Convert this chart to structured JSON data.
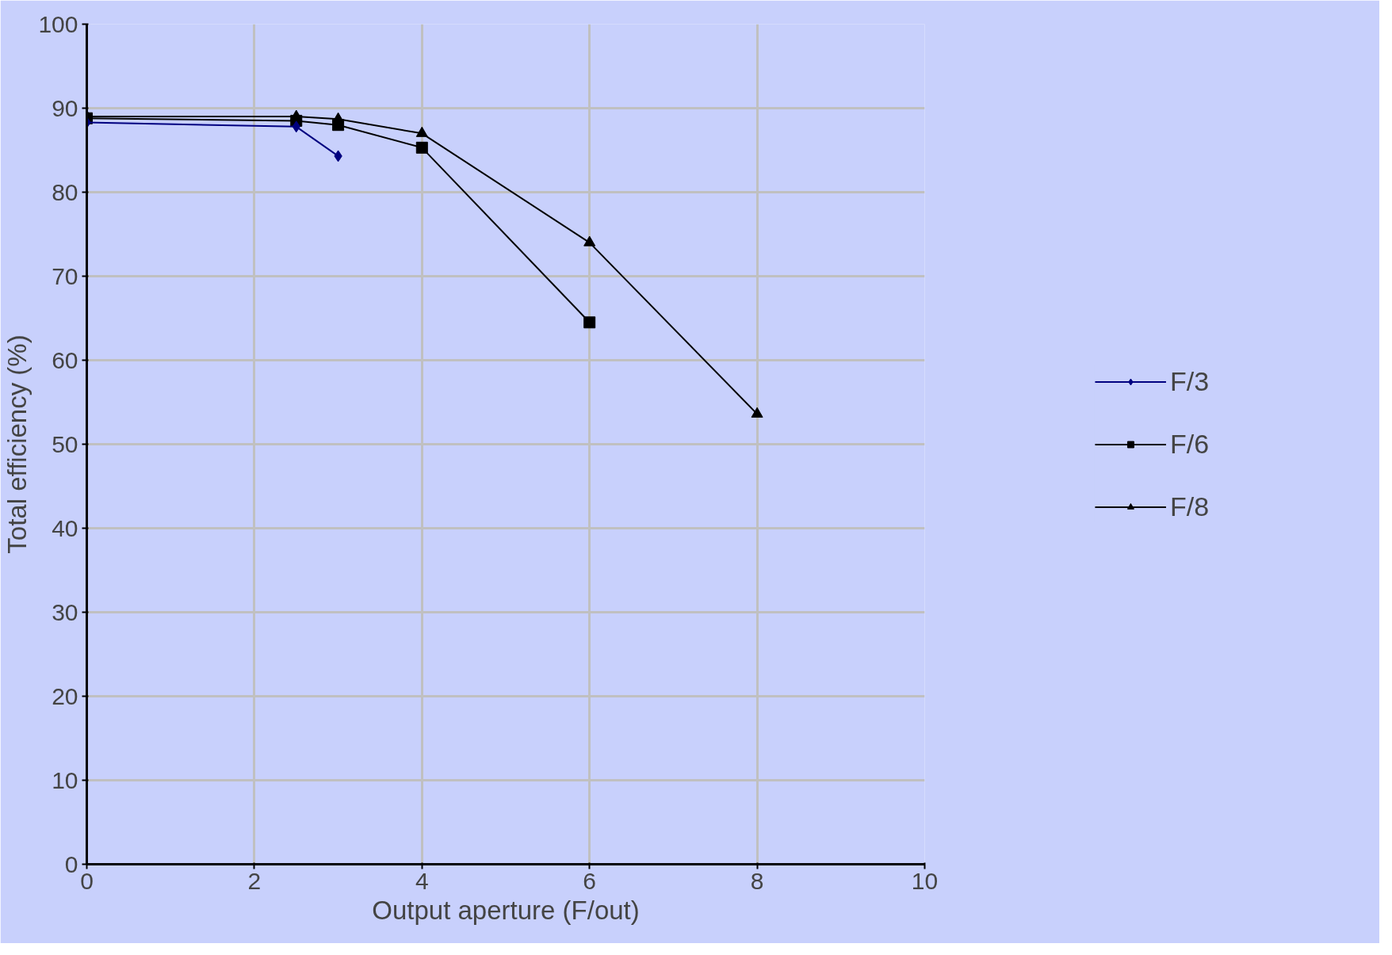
{
  "chart_data": {
    "type": "line",
    "xlabel": "Output aperture (F/out)",
    "ylabel": "Total efficiency (%)",
    "xlim": [
      0,
      10
    ],
    "xticks": [
      0,
      2,
      4,
      6,
      8,
      10
    ],
    "ylim": [
      0,
      100
    ],
    "yticks": [
      0,
      10,
      20,
      30,
      40,
      50,
      60,
      70,
      80,
      90,
      100
    ],
    "grid": true,
    "legend": "right",
    "line_style": "solid",
    "series": [
      {
        "name": "F/3",
        "color": "#000080",
        "marker": "diamond",
        "x": [
          0,
          2.5,
          3
        ],
        "values": [
          88.3,
          87.8,
          84.3
        ]
      },
      {
        "name": "F/6",
        "color": "#000000",
        "marker": "square",
        "x": [
          0,
          2.5,
          3,
          4,
          6
        ],
        "values": [
          88.8,
          88.5,
          88,
          85.3,
          64.5
        ]
      },
      {
        "name": "F/8",
        "color": "#000000",
        "marker": "triangle",
        "x": [
          0,
          2.5,
          3,
          4,
          6,
          8
        ],
        "values": [
          89,
          89,
          88.7,
          87,
          74,
          53.6
        ]
      }
    ]
  }
}
